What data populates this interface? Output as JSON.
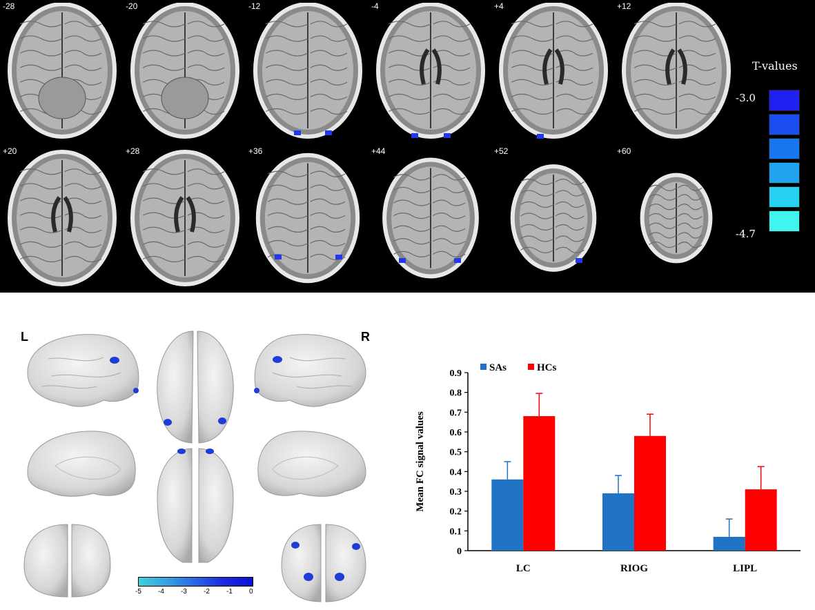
{
  "slices": {
    "labels": [
      "-28",
      "-20",
      "-12",
      "-4",
      "+4",
      "+12",
      "+20",
      "+28",
      "+36",
      "+44",
      "+52",
      "+60"
    ]
  },
  "colorbar": {
    "title": "T-values",
    "max_label": "-3.0",
    "min_label": "-4.7",
    "colors": [
      "#2020f0",
      "#1a4ef0",
      "#1876f0",
      "#20a4f0",
      "#28d0f0",
      "#40f4f0"
    ]
  },
  "surface": {
    "left_label": "L",
    "right_label": "R",
    "scale_ticks": [
      "-5",
      "-4",
      "-3",
      "-2",
      "-1",
      "0"
    ]
  },
  "chart_data": {
    "type": "bar",
    "categories": [
      "LC",
      "RIOG",
      "LIPL"
    ],
    "series": [
      {
        "name": "SAs",
        "values": [
          0.36,
          0.29,
          0.07
        ],
        "errors": [
          0.09,
          0.09,
          0.09
        ],
        "color": "#1f72c4"
      },
      {
        "name": "HCs",
        "values": [
          0.68,
          0.58,
          0.31
        ],
        "errors": [
          0.115,
          0.11,
          0.115
        ],
        "color": "#ff0000"
      }
    ],
    "ylabel": "Mean FC signal values",
    "ylim": [
      0,
      0.9
    ],
    "yticks": [
      "0",
      "0.1",
      "0.2",
      "0.3",
      "0.4",
      "0.5",
      "0.6",
      "0.7",
      "0.8",
      "0.9"
    ],
    "legend_position": "top-left",
    "grid": false
  }
}
